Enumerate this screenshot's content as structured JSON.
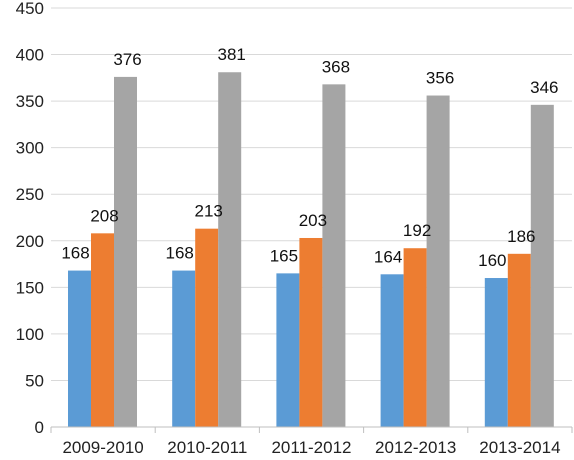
{
  "chart_data": {
    "type": "bar",
    "title": "",
    "xlabel": "",
    "ylabel": "",
    "categories": [
      "2009-2010",
      "2010-2011",
      "2011-2012",
      "2012-2013",
      "2013-2014"
    ],
    "series": [
      {
        "values": [
          168,
          168,
          165,
          164,
          160
        ],
        "color": "#5b9bd5"
      },
      {
        "values": [
          208,
          213,
          203,
          192,
          186
        ],
        "color": "#ed7d31"
      },
      {
        "values": [
          376,
          381,
          368,
          356,
          346
        ],
        "color": "#a5a5a5"
      }
    ],
    "ylim": [
      0,
      450
    ],
    "yticks": [
      0,
      50,
      100,
      150,
      200,
      250,
      300,
      350,
      400,
      450
    ],
    "grid": true,
    "legend": "none",
    "data_labels": true
  }
}
